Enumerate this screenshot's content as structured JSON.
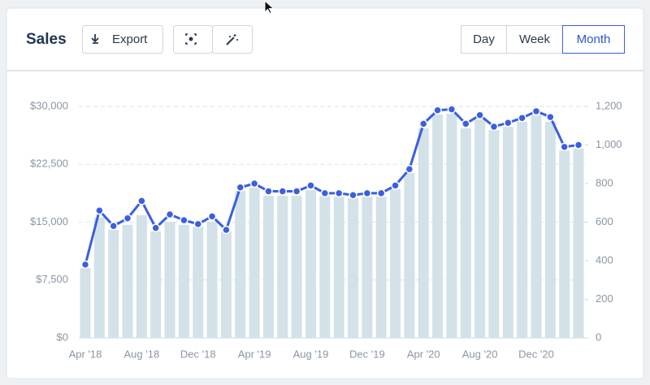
{
  "header": {
    "title": "Sales",
    "export_button": "Export",
    "range_buttons": [
      "Day",
      "Week",
      "Month"
    ],
    "active_range": 2
  },
  "chart_data": {
    "type": "bar",
    "categories": [
      "Apr '18",
      null,
      null,
      null,
      "Aug '18",
      null,
      null,
      null,
      "Dec '18",
      null,
      null,
      null,
      "Apr '19",
      null,
      null,
      null,
      "Aug '19",
      null,
      null,
      null,
      "Dec '19",
      null,
      null,
      null,
      "Apr '20",
      null,
      null,
      null,
      "Aug '20",
      null,
      null,
      null,
      "Dec '20",
      null,
      null,
      null
    ],
    "series": [
      {
        "type": "bar",
        "color": "#d3e1e8",
        "values": [
          9050,
          15600,
          14000,
          14650,
          15900,
          13800,
          15050,
          14650,
          14400,
          15050,
          13800,
          19050,
          19450,
          18400,
          18400,
          18400,
          19150,
          18400,
          18300,
          18100,
          18300,
          18300,
          19250,
          21350,
          27150,
          28950,
          29050,
          27150,
          28300,
          26950,
          27350,
          28000,
          28850,
          28000,
          24300,
          24550
        ]
      },
      {
        "type": "line",
        "axis": "y2",
        "color": "#3a5fe0",
        "values": [
          380,
          660,
          580,
          620,
          710,
          570,
          640,
          610,
          590,
          630,
          560,
          780,
          800,
          760,
          760,
          760,
          790,
          750,
          750,
          740,
          750,
          750,
          790,
          875,
          1110,
          1180,
          1185,
          1110,
          1155,
          1095,
          1115,
          1140,
          1175,
          1145,
          990,
          1000
        ]
      }
    ],
    "ylim": [
      0,
      30000
    ],
    "yticks": [
      {
        "value": 0,
        "label": "$0"
      },
      {
        "value": 7500,
        "label": "$7,500"
      },
      {
        "value": 15000,
        "label": "$15,000"
      },
      {
        "value": 22500,
        "label": "$22,500"
      },
      {
        "value": 30000,
        "label": "$30,000"
      }
    ],
    "y2lim": [
      0,
      1200
    ],
    "y2ticks": [
      0,
      200,
      400,
      600,
      800,
      {
        "value": 1000,
        "label": "1,000"
      },
      {
        "value": 1200,
        "label": "1,200"
      }
    ],
    "grid": true
  }
}
